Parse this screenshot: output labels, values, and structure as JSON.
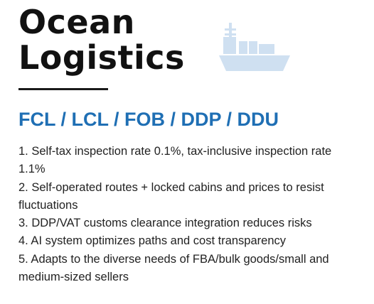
{
  "heading": {
    "line1": "Ocean",
    "line2": "Logistics"
  },
  "subtitle": "FCL / LCL / FOB / DDP / DDU",
  "features": [
    "1. Self-tax inspection rate 0.1%, tax-inclusive inspection rate 1.1%",
    "2. Self-operated routes + locked cabins and prices to resist fluctuations",
    "3. DDP/VAT customs clearance integration reduces risks",
    "4. AI system optimizes paths and cost transparency",
    "5. Adapts to the diverse needs of FBA/bulk goods/small and medium-sized sellers"
  ],
  "icon": "cargo-ship-icon",
  "colors": {
    "accent": "#1f6fb4",
    "ship": "#cfe0f1",
    "text": "#222222"
  }
}
